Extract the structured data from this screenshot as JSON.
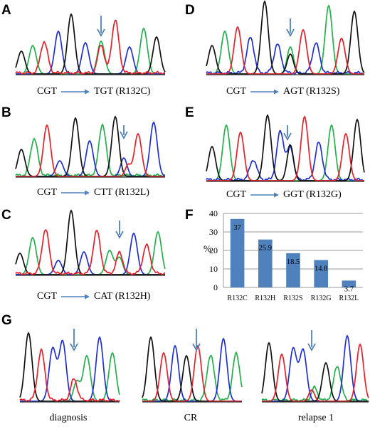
{
  "panels": {
    "A": {
      "letter": "A",
      "from": "CGT",
      "to": "TGT (R132C)"
    },
    "B": {
      "letter": "B",
      "from": "CGT",
      "to": "CTT (R132L)"
    },
    "C": {
      "letter": "C",
      "from": "CGT",
      "to": "CAT (R132H)"
    },
    "D": {
      "letter": "D",
      "from": "CGT",
      "to": "AGT (R132S)"
    },
    "E": {
      "letter": "E",
      "from": "CGT",
      "to": "GGT (R132G)"
    },
    "F": {
      "letter": "F"
    },
    "G": {
      "letter": "G",
      "labels": [
        "diagnosis",
        "CR",
        "relapse 1"
      ]
    }
  },
  "colors": {
    "A": "#22b14c",
    "C": "#1f2fd6",
    "G": "#111111",
    "T": "#e8202a",
    "arrow": "#4f81bd",
    "bar": "#4f81bd"
  },
  "chart_data": {
    "type": "bar",
    "categories": [
      "R132C",
      "R132H",
      "R132S",
      "R132G",
      "R132L"
    ],
    "values": [
      37,
      25.9,
      18.5,
      14.8,
      3.7
    ],
    "data_labels": [
      "37",
      "25.9",
      "18.5",
      "14.8",
      "3.7"
    ],
    "ylabel": "%",
    "ylim": [
      0,
      40
    ],
    "yticks": [
      0,
      10,
      20,
      30,
      40
    ],
    "grid": true
  }
}
